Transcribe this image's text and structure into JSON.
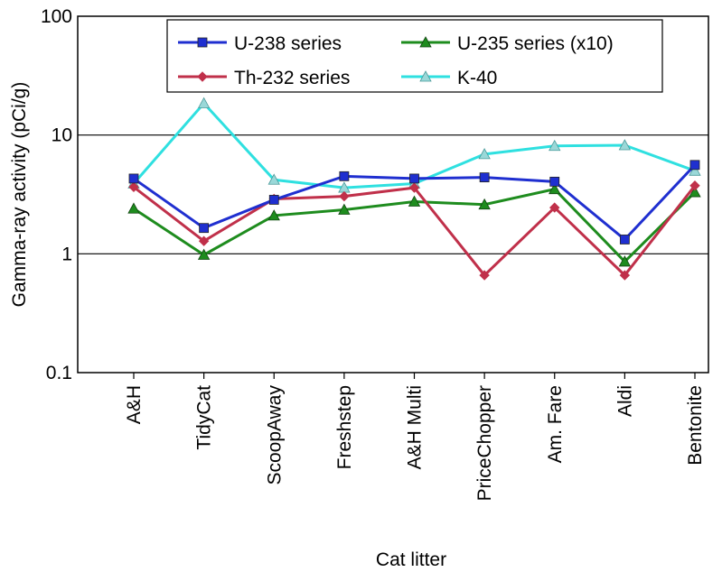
{
  "chart_data": {
    "type": "line",
    "xlabel": "Cat litter",
    "ylabel": "Gamma-ray activity (pCi/g)",
    "yscale": "log",
    "ylim": [
      0.1,
      100
    ],
    "yticks": [
      "0.1",
      "1",
      "10",
      "100"
    ],
    "grid": "horizontal major gridlines at 1 and 10",
    "legend_position": "top-center",
    "categories": [
      "A&H",
      "TidyCat",
      "ScoopAway",
      "Freshstep",
      "A&H Multi",
      "PriceChopper",
      "Am. Fare",
      "Aldi",
      "Bentonite"
    ],
    "series": [
      {
        "name": "U-238 series",
        "color": "#1f2fd0",
        "marker": "square",
        "values": [
          4.3,
          1.65,
          2.85,
          4.5,
          4.3,
          4.4,
          4.05,
          1.32,
          5.6
        ]
      },
      {
        "name": "Th-232 series",
        "color": "#c0304a",
        "marker": "diamond",
        "values": [
          3.65,
          1.28,
          2.9,
          3.05,
          3.6,
          0.66,
          2.45,
          0.66,
          3.75
        ]
      },
      {
        "name": "U-235 series (x10)",
        "color": "#1e8c1e",
        "marker": "triangle",
        "values": [
          2.4,
          0.98,
          2.1,
          2.35,
          2.75,
          2.6,
          3.5,
          0.86,
          3.3
        ]
      },
      {
        "name": "K-40",
        "color": "#2fe0e0",
        "marker": "triangle-open",
        "values": [
          3.9,
          18.5,
          4.2,
          3.6,
          3.9,
          6.9,
          8.1,
          8.2,
          5.0
        ]
      }
    ]
  }
}
